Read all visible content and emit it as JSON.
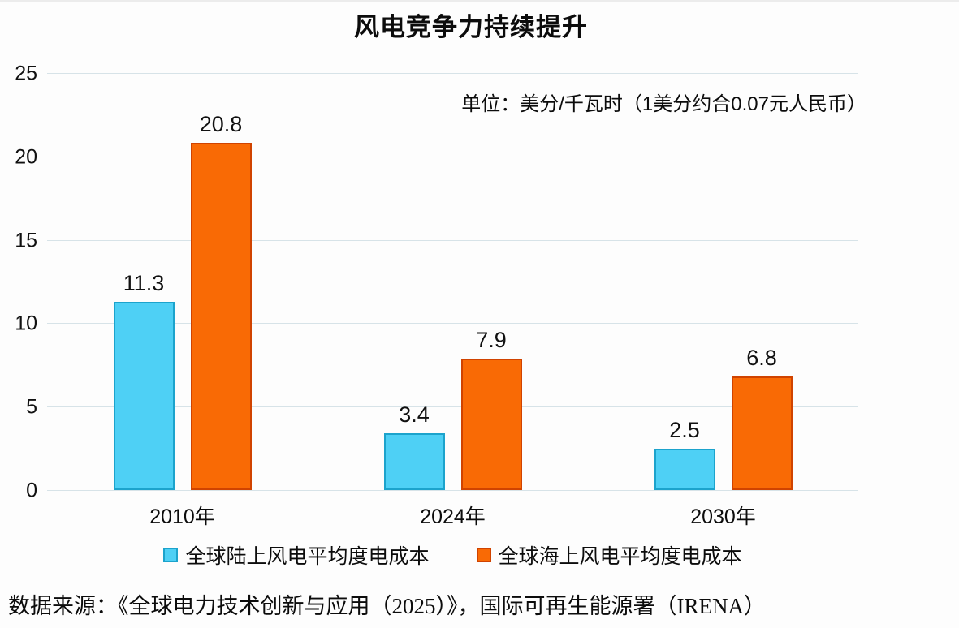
{
  "title": "风电竞争力持续提升",
  "unit_note": "单位：美分/千瓦时（1美分约合0.07元人民币）",
  "source": "数据来源：《全球电力技术创新与应用（2025）》，国际可再生能源署（IRENA）",
  "colors": {
    "onshore_fill": "#4ed0f5",
    "onshore_border": "#1ca3cc",
    "offshore_fill": "#f96a05",
    "offshore_border": "#d04300",
    "gridline": "#d7e3e8",
    "text": "#0c0c0c"
  },
  "chart_data": {
    "type": "bar",
    "title": "风电竞争力持续提升",
    "unit": "美分/千瓦时",
    "categories": [
      "2010年",
      "2024年",
      "2030年"
    ],
    "series": [
      {
        "name": "全球陆上风电平均度电成本",
        "values": [
          11.3,
          3.4,
          2.5
        ],
        "fill": "#4ed0f5",
        "border": "#1ca3cc"
      },
      {
        "name": "全球海上风电平均度电成本",
        "values": [
          20.8,
          7.9,
          6.8
        ],
        "fill": "#f96a05",
        "border": "#d04300"
      }
    ],
    "ylim": [
      0,
      25
    ],
    "yticks": [
      0,
      5,
      10,
      15,
      20,
      25
    ],
    "xlabel": "",
    "ylabel": "",
    "grid": true,
    "data_labels": true,
    "legend_position": "bottom"
  }
}
